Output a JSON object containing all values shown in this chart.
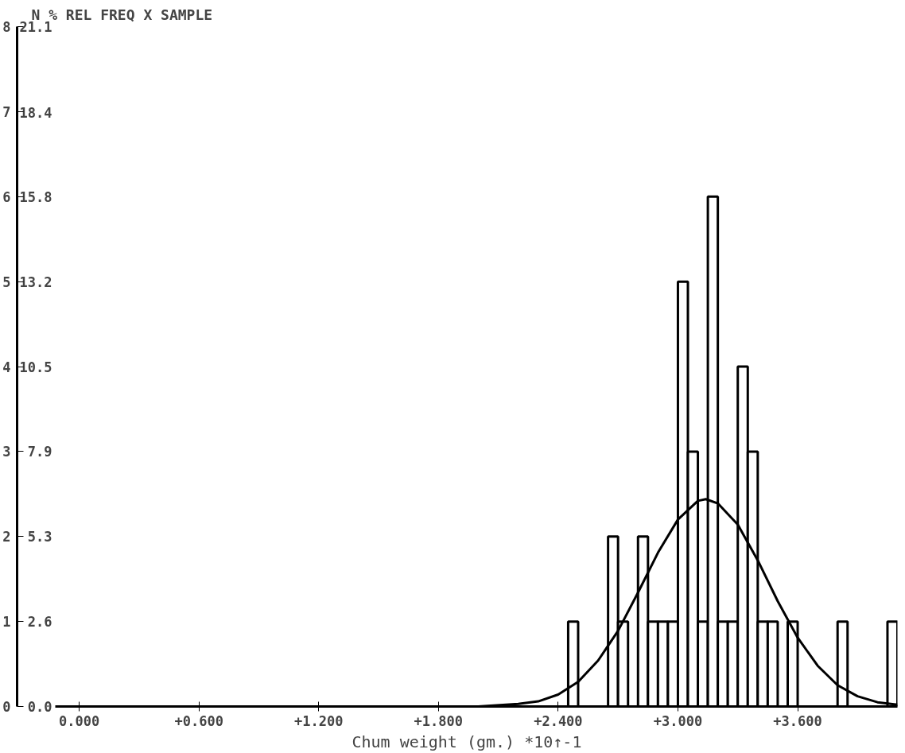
{
  "chart_data": {
    "type": "histogram",
    "title": "N   % REL FREQ   X SAMPLE",
    "xlabel": "Chum weight (gm.)   *10↑-1",
    "series": [
      {
        "type": "histogram",
        "color": "#000000",
        "bins": [
          2.45,
          2.5,
          2.55,
          2.6,
          2.65,
          2.7,
          2.75,
          2.8,
          2.85,
          2.9,
          2.95,
          3.0,
          3.05,
          3.1,
          3.15,
          3.2,
          3.25,
          3.3,
          3.35,
          3.4,
          3.45,
          3.5,
          3.55,
          3.6,
          3.65,
          3.7,
          3.75,
          3.8,
          3.85,
          3.9,
          3.95,
          4.0,
          4.05,
          4.1
        ],
        "values": [
          1,
          0,
          0,
          0,
          2,
          1,
          0,
          2,
          1,
          1,
          1,
          5,
          3,
          1,
          6,
          1,
          1,
          4,
          3,
          1,
          1,
          0,
          1,
          0,
          0,
          0,
          0,
          1,
          0,
          0,
          0,
          0,
          1
        ]
      },
      {
        "type": "line",
        "color": "#000000",
        "x": [
          1.8,
          2.0,
          2.2,
          2.3,
          2.4,
          2.5,
          2.6,
          2.7,
          2.8,
          2.9,
          3.0,
          3.1,
          3.14,
          3.2,
          3.3,
          3.4,
          3.5,
          3.6,
          3.7,
          3.8,
          3.9,
          4.0,
          4.1
        ],
        "values": [
          0.0,
          0.0,
          0.03,
          0.06,
          0.14,
          0.29,
          0.54,
          0.89,
          1.34,
          1.81,
          2.2,
          2.42,
          2.44,
          2.39,
          2.14,
          1.72,
          1.24,
          0.81,
          0.48,
          0.25,
          0.12,
          0.05,
          0.02
        ]
      }
    ],
    "xlim": [
      -0.12,
      4.1
    ],
    "xticks": [
      {
        "value": 0,
        "label": "0.000"
      },
      {
        "value": 0.6,
        "label": "+0.600"
      },
      {
        "value": 1.2,
        "label": "+1.200"
      },
      {
        "value": 1.8,
        "label": "+1.800"
      },
      {
        "value": 2.4,
        "label": "+2.400"
      },
      {
        "value": 3.0,
        "label": "+3.000"
      },
      {
        "value": 3.6,
        "label": "+3.600"
      }
    ],
    "ylim": [
      0,
      8
    ],
    "yticks": [
      0,
      1,
      2,
      3,
      4,
      5,
      6,
      7,
      8
    ],
    "y2lim": [
      0,
      21.1
    ],
    "y2ticks": [
      {
        "value": 0,
        "label": "0.0"
      },
      {
        "value": 2.6375,
        "label": "2.6"
      },
      {
        "value": 5.275,
        "label": "5.3"
      },
      {
        "value": 7.9125,
        "label": "7.9"
      },
      {
        "value": 10.55,
        "label": "10.5"
      },
      {
        "value": 13.1875,
        "label": "13.2"
      },
      {
        "value": 15.825,
        "label": "15.8"
      },
      {
        "value": 18.44,
        "label": "18.4"
      },
      21.1
    ],
    "grid": false
  }
}
